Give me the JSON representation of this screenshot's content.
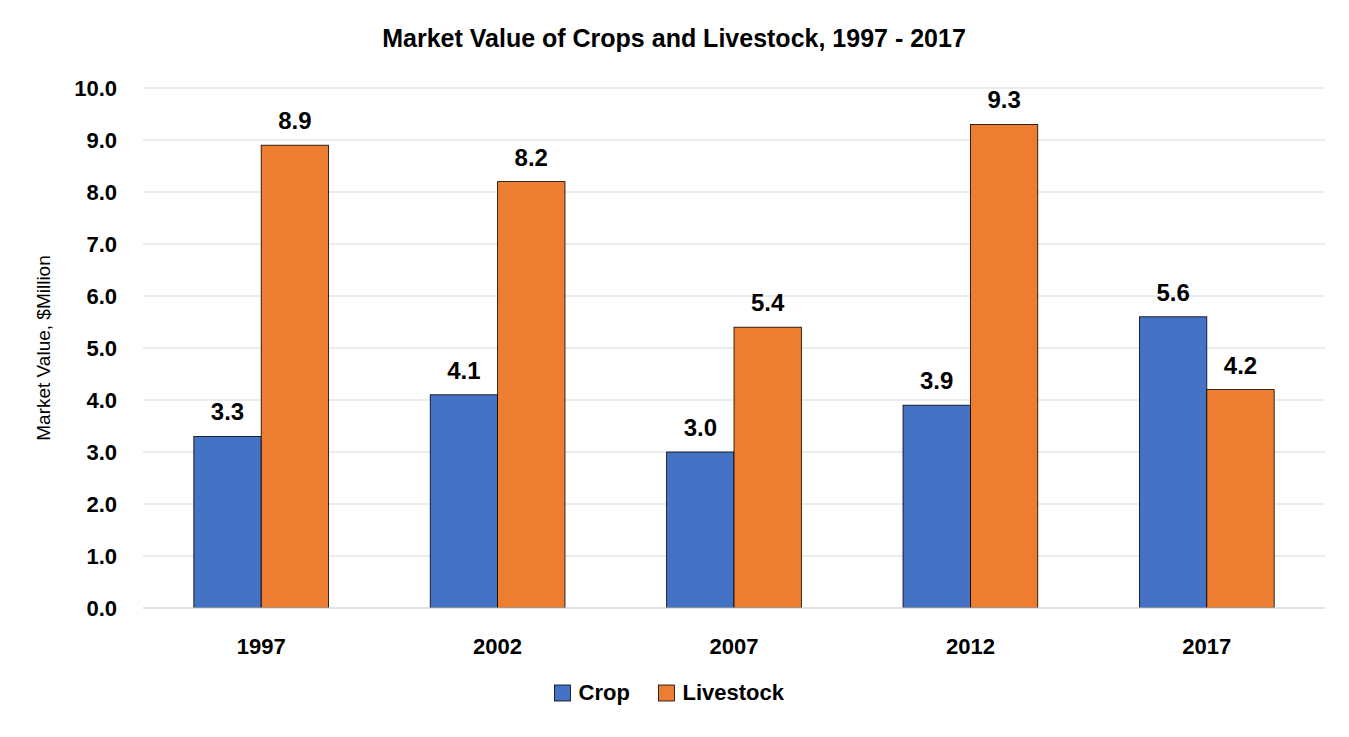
{
  "chart_data": {
    "type": "bar",
    "title": "Market Value of Crops and Livestock, 1997 - 2017",
    "y_label": "Market Value, $Million",
    "categories": [
      "1997",
      "2002",
      "2007",
      "2012",
      "2017"
    ],
    "series": [
      {
        "name": "Crop",
        "color": "#4472c4",
        "values": [
          3.3,
          4.1,
          3.0,
          3.9,
          5.6
        ],
        "value_labels": [
          "3.3",
          "4.1",
          "3.0",
          "3.9",
          "5.6"
        ]
      },
      {
        "name": "Livestock",
        "color": "#ed7d31",
        "values": [
          8.9,
          8.2,
          5.4,
          9.3,
          4.2
        ],
        "value_labels": [
          "8.9",
          "8.2",
          "5.4",
          "9.3",
          "4.2"
        ]
      }
    ],
    "ylim": [
      0,
      10
    ],
    "yticks": [
      {
        "value": 0,
        "label": "0.0"
      },
      {
        "value": 1,
        "label": "1.0"
      },
      {
        "value": 2,
        "label": "2.0"
      },
      {
        "value": 3,
        "label": "3.0"
      },
      {
        "value": 4,
        "label": "4.0"
      },
      {
        "value": 5,
        "label": "5.0"
      },
      {
        "value": 6,
        "label": "6.0"
      },
      {
        "value": 7,
        "label": "7.0"
      },
      {
        "value": 8,
        "label": "8.0"
      },
      {
        "value": 9,
        "label": "9.0"
      },
      {
        "value": 10,
        "label": "10.0"
      }
    ],
    "grid": true,
    "data_labels": true,
    "legend": "bottom"
  }
}
